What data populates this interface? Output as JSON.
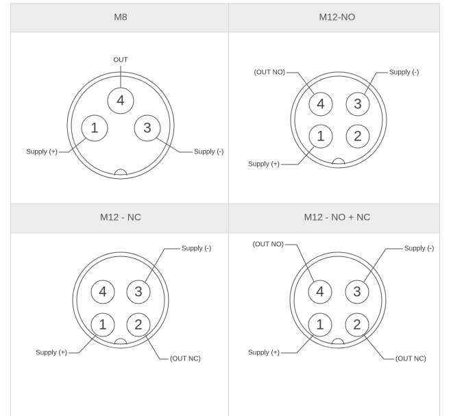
{
  "panels": [
    {
      "title": "M8",
      "pins": [
        "4",
        "1",
        "3"
      ],
      "labels": [
        "OUT",
        "Supply (+)",
        "Supply (-)"
      ]
    },
    {
      "title": "M12-NO",
      "pins": [
        "4",
        "3",
        "1",
        "2"
      ],
      "labels": [
        "(OUT NO)",
        "Supply (-)",
        "Supply (+)"
      ]
    },
    {
      "title": "M12 - NC",
      "pins": [
        "4",
        "3",
        "1",
        "2"
      ],
      "labels": [
        "Supply (-)",
        "Supply (+)",
        "(OUT NC)"
      ]
    },
    {
      "title": "M12 - NO + NC",
      "pins": [
        "4",
        "3",
        "1",
        "2"
      ],
      "labels": [
        "(OUT NO)",
        "Supply (-)",
        "Supply (+)",
        "(OUT NC)"
      ]
    }
  ]
}
